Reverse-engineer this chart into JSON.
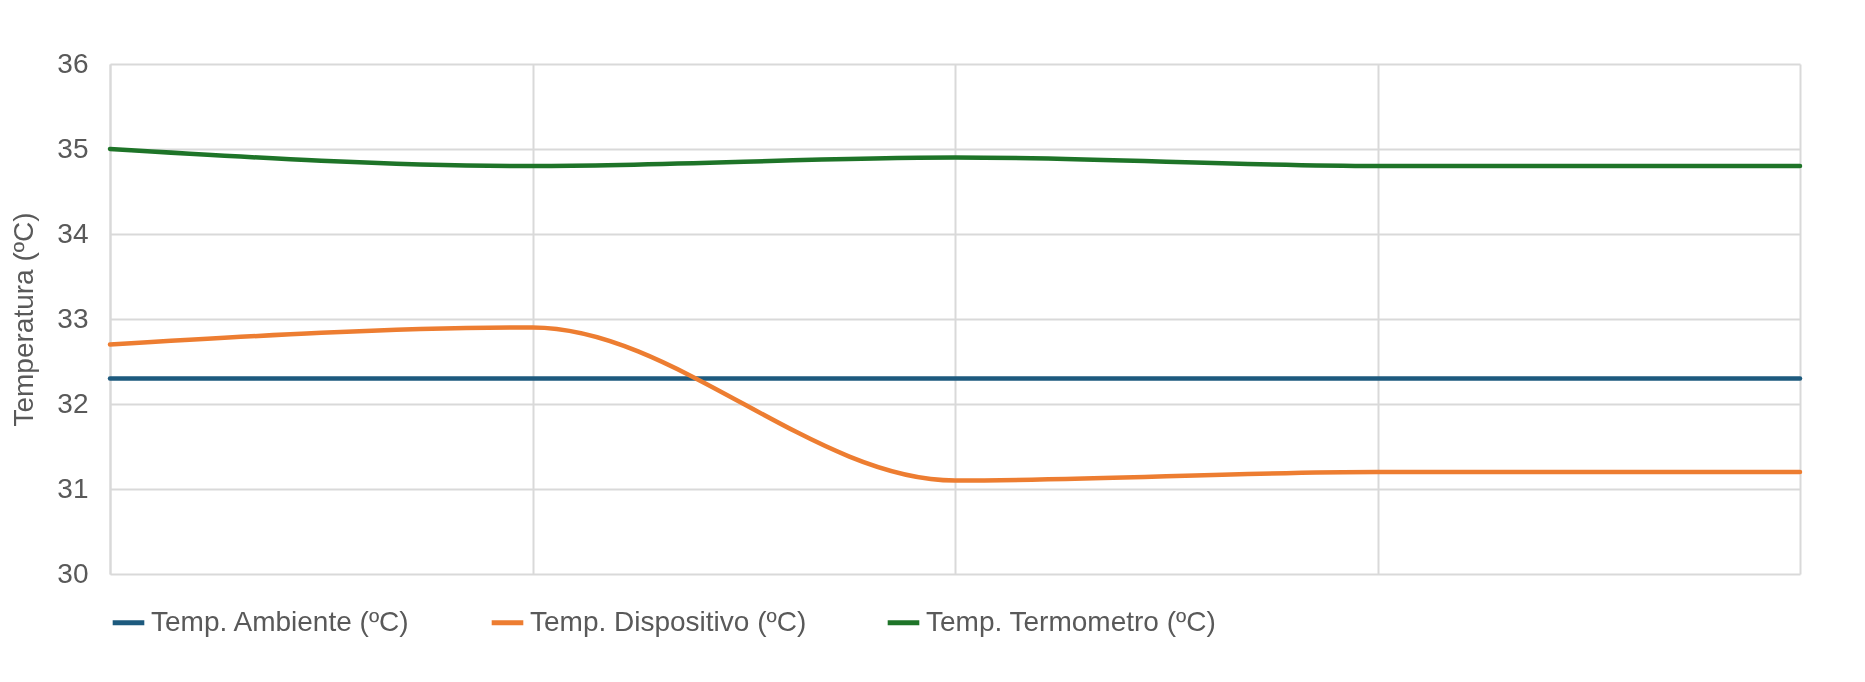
{
  "chart_data": {
    "type": "line",
    "ylabel": "Temperatura (ºC)",
    "categories": [
      null,
      null,
      null,
      null,
      null
    ],
    "series": [
      {
        "name": "Temp. Ambiente (ºC)",
        "color": "#1d5a7e",
        "values": [
          32.3,
          32.3,
          32.3,
          32.3,
          32.3
        ]
      },
      {
        "name": "Temp. Dispositivo (ºC)",
        "color": "#ed7d31",
        "values": [
          32.7,
          32.9,
          31.1,
          31.2,
          31.2
        ]
      },
      {
        "name": "Temp. Termometro (ºC)",
        "color": "#1e7428",
        "values": [
          35.0,
          34.8,
          34.9,
          34.8,
          34.8
        ]
      }
    ],
    "ylim": [
      30,
      36
    ],
    "yticks": [
      30,
      31,
      32,
      33,
      34,
      35,
      36
    ],
    "grid": true,
    "legend": "bottom",
    "tick_labels": "y",
    "marker": "none",
    "line_style": "solid"
  }
}
